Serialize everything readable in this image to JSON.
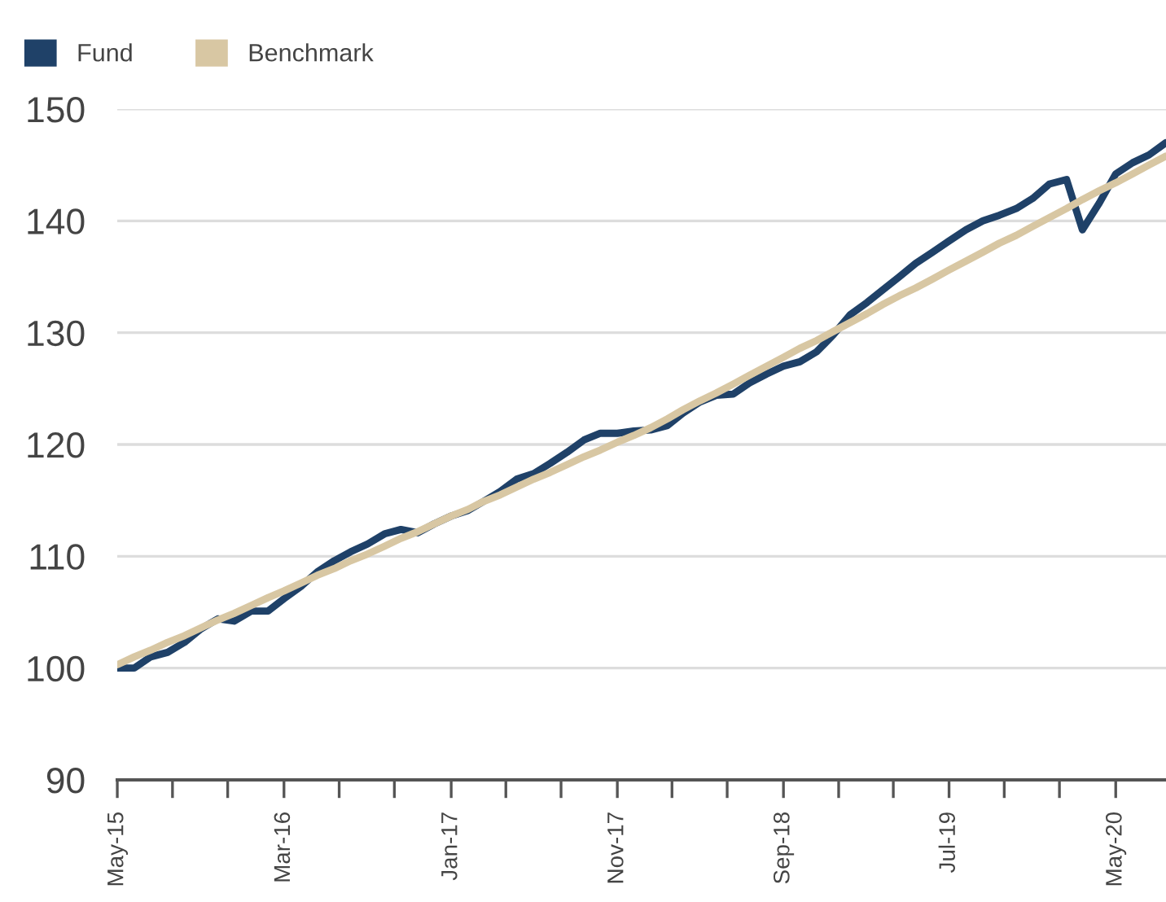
{
  "chart_data": {
    "type": "line",
    "x": [
      "2015-05",
      "2015-06",
      "2015-07",
      "2015-08",
      "2015-09",
      "2015-10",
      "2015-11",
      "2015-12",
      "2016-01",
      "2016-02",
      "2016-03",
      "2016-04",
      "2016-05",
      "2016-06",
      "2016-07",
      "2016-08",
      "2016-09",
      "2016-10",
      "2016-11",
      "2016-12",
      "2017-01",
      "2017-02",
      "2017-03",
      "2017-04",
      "2017-05",
      "2017-06",
      "2017-07",
      "2017-08",
      "2017-09",
      "2017-10",
      "2017-11",
      "2017-12",
      "2018-01",
      "2018-02",
      "2018-03",
      "2018-04",
      "2018-05",
      "2018-06",
      "2018-07",
      "2018-08",
      "2018-09",
      "2018-10",
      "2018-11",
      "2018-12",
      "2019-01",
      "2019-02",
      "2019-03",
      "2019-04",
      "2019-05",
      "2019-06",
      "2019-07",
      "2019-08",
      "2019-09",
      "2019-10",
      "2019-11",
      "2019-12",
      "2020-01",
      "2020-02",
      "2020-03",
      "2020-04",
      "2020-05",
      "2020-06",
      "2020-07",
      "2020-08"
    ],
    "series": [
      {
        "name": "Fund",
        "color": "#1f4168",
        "values": [
          100.0,
          100.0,
          101.0,
          101.4,
          102.3,
          103.5,
          104.4,
          104.2,
          105.1,
          105.1,
          106.2,
          107.3,
          108.6,
          109.6,
          110.4,
          111.1,
          112.0,
          112.4,
          112.1,
          112.9,
          113.6,
          114.1,
          114.9,
          115.8,
          116.9,
          117.4,
          118.3,
          119.3,
          120.4,
          121.0,
          121.0,
          121.2,
          121.3,
          121.7,
          122.8,
          123.8,
          124.4,
          124.5,
          125.5,
          126.3,
          127.0,
          127.4,
          128.3,
          129.8,
          131.6,
          132.7,
          133.8,
          135.0,
          136.2,
          137.2,
          138.2,
          139.2,
          140.0,
          140.5,
          141.1,
          142.0,
          143.3,
          143.7,
          139.2,
          141.6,
          144.2,
          145.2,
          145.9,
          147.0
        ]
      },
      {
        "name": "Benchmark",
        "color": "#d8c7a3",
        "values": [
          100.3,
          101.0,
          101.6,
          102.3,
          102.9,
          103.6,
          104.3,
          104.9,
          105.6,
          106.3,
          106.9,
          107.6,
          108.3,
          108.9,
          109.6,
          110.2,
          110.9,
          111.6,
          112.2,
          112.9,
          113.6,
          114.2,
          114.9,
          115.5,
          116.2,
          116.9,
          117.5,
          118.2,
          118.9,
          119.5,
          120.2,
          120.8,
          121.5,
          122.3,
          123.1,
          123.9,
          124.6,
          125.4,
          126.2,
          127.0,
          127.8,
          128.6,
          129.3,
          130.1,
          130.9,
          131.7,
          132.5,
          133.3,
          134.0,
          134.8,
          135.6,
          136.4,
          137.2,
          138.0,
          138.7,
          139.5,
          140.3,
          141.1,
          141.9,
          142.7,
          143.4,
          144.2,
          145.0,
          145.8
        ]
      }
    ],
    "xlim": [
      "2015-05",
      "2020-08"
    ],
    "xticks": [
      {
        "value": "2015-05",
        "label": "May-15"
      },
      {
        "value": "2015-08-10",
        "label": null
      },
      {
        "value": "2015-11-19",
        "label": null
      },
      {
        "value": "2016-03",
        "label": "Mar-16"
      },
      {
        "value": "2016-06-10",
        "label": null
      },
      {
        "value": "2016-09-19",
        "label": null
      },
      {
        "value": "2017-01",
        "label": "Jan-17"
      },
      {
        "value": "2017-04-11",
        "label": null
      },
      {
        "value": "2017-07-21",
        "label": null
      },
      {
        "value": "2017-11",
        "label": "Nov-17"
      },
      {
        "value": "2018-02-09",
        "label": null
      },
      {
        "value": "2018-05-21",
        "label": null
      },
      {
        "value": "2018-09",
        "label": "Sep-18"
      },
      {
        "value": "2018-12-11",
        "label": null
      },
      {
        "value": "2019-03-21",
        "label": null
      },
      {
        "value": "2019-07",
        "label": "Jul-19"
      },
      {
        "value": "2019-10-10",
        "label": null
      },
      {
        "value": "2020-01-19",
        "label": null
      },
      {
        "value": "2020-05",
        "label": "May-20"
      }
    ],
    "ylim": [
      90,
      150
    ],
    "yticks": [
      90,
      100,
      110,
      120,
      130,
      140,
      150
    ],
    "grid": "y",
    "legend": "top left",
    "marker": "none",
    "line_style": "solid"
  }
}
